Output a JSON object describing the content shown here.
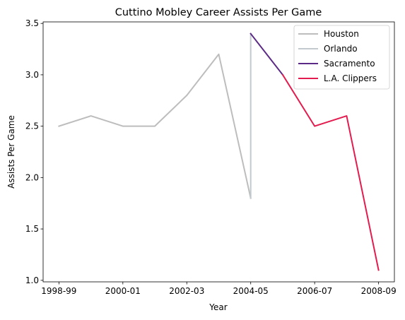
{
  "chart_data": {
    "type": "line",
    "title": "Cuttino Mobley Career Assists Per Game",
    "xlabel": "Year",
    "ylabel": "Assists Per Game",
    "x_ticks": [
      "1998-99",
      "2000-01",
      "2002-03",
      "2004-05",
      "2006-07",
      "2008-09"
    ],
    "y_ticks": [
      "1.0",
      "1.5",
      "2.0",
      "2.5",
      "3.0",
      "3.5"
    ],
    "ylim": [
      0.985,
      3.515
    ],
    "xlim": [
      "1998-99",
      "2008-09"
    ],
    "grid": false,
    "legend_position": "top-right",
    "series": [
      {
        "name": "Houston",
        "color": "#bdbdbd",
        "points": [
          {
            "x": "1998-99",
            "y": 2.5
          },
          {
            "x": "1999-00",
            "y": 2.6
          },
          {
            "x": "2000-01",
            "y": 2.5
          },
          {
            "x": "2001-02",
            "y": 2.5
          },
          {
            "x": "2002-03",
            "y": 2.8
          },
          {
            "x": "2003-04",
            "y": 3.2
          },
          {
            "x": "2004-05",
            "y": 1.8
          }
        ]
      },
      {
        "name": "Orlando",
        "color": "#c2c9cf",
        "points": [
          {
            "x": "2004-05",
            "y": 1.8
          },
          {
            "x": "2004-05",
            "y": 3.4
          }
        ]
      },
      {
        "name": "Sacramento",
        "color": "#5b2a86",
        "points": [
          {
            "x": "2004-05",
            "y": 3.4
          },
          {
            "x": "2005-06",
            "y": 3.0
          }
        ]
      },
      {
        "name": "L.A. Clippers",
        "color": "#e31c4f",
        "points": [
          {
            "x": "2005-06",
            "y": 3.0
          },
          {
            "x": "2006-07",
            "y": 2.5
          },
          {
            "x": "2007-08",
            "y": 2.6
          },
          {
            "x": "2008-09",
            "y": 1.1
          }
        ]
      }
    ]
  }
}
